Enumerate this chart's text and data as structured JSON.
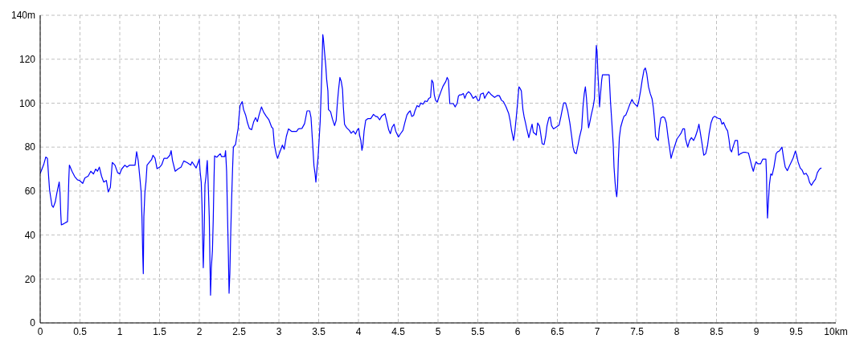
{
  "chart_data": {
    "type": "line",
    "color": "#0000ff",
    "line_style": "solid",
    "grid": true,
    "xlim": [
      0,
      10
    ],
    "xticks": [
      0,
      0.5,
      1,
      1.5,
      2,
      2.5,
      3,
      3.5,
      4,
      4.5,
      5,
      5.5,
      6,
      6.5,
      7,
      7.5,
      8,
      8.5,
      9,
      9.5,
      {
        "value": 10,
        "label": "10km"
      }
    ],
    "ylim": [
      0,
      140
    ],
    "yticks": [
      0,
      20,
      40,
      60,
      80,
      100,
      120,
      {
        "value": 140,
        "label": "140m"
      }
    ],
    "x": [
      0,
      0.024,
      0.047,
      0.071,
      0.091,
      0.108,
      0.118,
      0.131,
      0.148,
      0.165,
      0.189,
      0.212,
      0.239,
      0.249,
      0.259,
      0.266,
      0.3,
      0.343,
      0.35,
      0.36,
      0.367,
      0.4,
      0.434,
      0.468,
      0.495,
      0.535,
      0.562,
      0.603,
      0.636,
      0.67,
      0.697,
      0.72,
      0.744,
      0.771,
      0.798,
      0.832,
      0.855,
      0.882,
      0.906,
      0.94,
      0.973,
      1.0,
      1.024,
      1.064,
      1.091,
      1.125,
      1.192,
      1.212,
      1.232,
      1.256,
      1.269,
      1.279,
      1.289,
      1.296,
      1.303,
      1.316,
      1.33,
      1.343,
      1.377,
      1.4,
      1.418,
      1.444,
      1.468,
      1.502,
      1.529,
      1.556,
      1.596,
      1.63,
      1.646,
      1.663,
      1.697,
      1.73,
      1.771,
      1.805,
      1.848,
      1.892,
      1.909,
      1.96,
      2.0,
      2.01,
      2.024,
      2.034,
      2.044,
      2.05,
      2.061,
      2.071,
      2.084,
      2.094,
      2.1,
      2.111,
      2.125,
      2.135,
      2.141,
      2.151,
      2.165,
      2.175,
      2.185,
      2.192,
      2.219,
      2.263,
      2.279,
      2.32,
      2.33,
      2.343,
      2.354,
      2.364,
      2.374,
      2.384,
      2.394,
      2.407,
      2.418,
      2.428,
      2.455,
      2.471,
      2.488,
      2.498,
      2.512,
      2.539,
      2.556,
      2.582,
      2.606,
      2.629,
      2.657,
      2.684,
      2.707,
      2.73,
      2.751,
      2.781,
      2.808,
      2.842,
      2.875,
      2.909,
      2.926,
      2.943,
      2.966,
      2.983,
      3.01,
      3.044,
      3.067,
      3.094,
      3.121,
      3.162,
      3.222,
      3.246,
      3.29,
      3.323,
      3.354,
      3.387,
      3.404,
      3.424,
      3.441,
      3.455,
      3.465,
      3.482,
      3.492,
      3.505,
      3.519,
      3.532,
      3.542,
      3.552,
      3.559,
      3.575,
      3.589,
      3.6,
      3.616,
      3.623,
      3.65,
      3.673,
      3.7,
      3.72,
      3.734,
      3.75,
      3.767,
      3.784,
      3.8,
      3.81,
      3.825,
      3.852,
      3.886,
      3.909,
      3.936,
      3.963,
      3.987,
      4.003,
      4.017,
      4.03,
      4.044,
      4.057,
      4.071,
      4.091,
      4.121,
      4.155,
      4.189,
      4.216,
      4.239,
      4.266,
      4.29,
      4.333,
      4.357,
      4.38,
      4.401,
      4.424,
      4.448,
      4.468,
      4.502,
      4.525,
      4.559,
      4.582,
      4.609,
      4.636,
      4.65,
      4.67,
      4.693,
      4.71,
      4.737,
      4.761,
      4.784,
      4.811,
      4.838,
      4.862,
      4.885,
      4.906,
      4.922,
      4.939,
      4.953,
      4.97,
      4.99,
      5.013,
      5.04,
      5.064,
      5.098,
      5.115,
      5.131,
      5.148,
      5.192,
      5.216,
      5.242,
      5.256,
      5.273,
      5.293,
      5.318,
      5.337,
      5.357,
      5.384,
      5.408,
      5.441,
      5.475,
      5.502,
      5.519,
      5.535,
      5.569,
      5.586,
      5.609,
      5.636,
      5.67,
      5.711,
      5.748,
      5.771,
      5.798,
      5.822,
      5.855,
      5.889,
      5.906,
      5.923,
      5.939,
      5.949,
      5.963,
      5.983,
      6.0,
      6.017,
      6.03,
      6.047,
      6.067,
      6.084,
      6.1,
      6.114,
      6.141,
      6.161,
      6.182,
      6.198,
      6.219,
      6.235,
      6.252,
      6.276,
      6.293,
      6.309,
      6.333,
      6.353,
      6.37,
      6.394,
      6.41,
      6.427,
      6.451,
      6.485,
      6.521,
      6.545,
      6.555,
      6.579,
      6.603,
      6.63,
      6.657,
      6.68,
      6.697,
      6.714,
      6.737,
      6.758,
      6.781,
      6.805,
      6.822,
      6.838,
      6.852,
      6.865,
      6.882,
      6.892,
      6.906,
      6.926,
      6.949,
      6.966,
      6.976,
      6.99,
      7.0,
      7.01,
      7.02,
      7.03,
      7.04,
      7.057,
      7.067,
      7.151,
      7.168,
      7.185,
      7.202,
      7.212,
      7.225,
      7.236,
      7.246,
      7.256,
      7.266,
      7.279,
      7.296,
      7.32,
      7.337,
      7.36,
      7.387,
      7.411,
      7.438,
      7.455,
      7.478,
      7.505,
      7.522,
      7.546,
      7.566,
      7.589,
      7.606,
      7.623,
      7.646,
      7.667,
      7.69,
      7.707,
      7.724,
      7.734,
      7.751,
      7.768,
      7.781,
      7.801,
      7.825,
      7.848,
      7.869,
      7.892,
      7.916,
      7.929,
      7.949,
      7.976,
      8.003,
      8.027,
      8.054,
      8.077,
      8.098,
      8.111,
      8.138,
      8.162,
      8.185,
      8.212,
      8.236,
      8.263,
      8.279,
      8.296,
      8.32,
      8.34,
      8.364,
      8.387,
      8.407,
      8.431,
      8.455,
      8.475,
      8.515,
      8.549,
      8.569,
      8.589,
      8.616,
      8.64,
      8.656,
      8.673,
      8.69,
      8.707,
      8.734,
      8.764,
      8.777,
      8.801,
      8.835,
      8.869,
      8.902,
      8.926,
      8.946,
      8.963,
      8.98,
      8.997,
      9.02,
      9.054,
      9.081,
      9.121,
      9.128,
      9.135,
      9.141,
      9.151,
      9.165,
      9.182,
      9.199,
      9.222,
      9.249,
      9.266,
      9.289,
      9.323,
      9.343,
      9.364,
      9.39,
      9.417,
      9.441,
      9.464,
      9.491,
      9.508,
      9.525,
      9.552,
      9.575,
      9.599,
      9.626,
      9.65,
      9.67,
      9.693,
      9.717,
      9.744,
      9.768,
      9.795,
      9.818
    ],
    "values": [
      68,
      70.2,
      72.4,
      75.5,
      74.9,
      65.6,
      60.5,
      57.4,
      53.4,
      52.6,
      55,
      59.5,
      64.1,
      59.3,
      49.5,
      44.6,
      45.2,
      46.1,
      52.6,
      65.6,
      71.8,
      69,
      66.6,
      65.1,
      64.8,
      63.5,
      66,
      66.8,
      69,
      67.8,
      70,
      69,
      70.9,
      66.8,
      64.1,
      64.8,
      59.6,
      61.7,
      73,
      71.8,
      68.4,
      67.8,
      70,
      71.8,
      70.9,
      71.8,
      71.8,
      77.9,
      73.9,
      64.8,
      59.5,
      48.3,
      31.2,
      22.4,
      48.3,
      59.3,
      64.4,
      71.8,
      73.3,
      74.3,
      76.3,
      74.9,
      70.2,
      70.9,
      72.1,
      74.9,
      74.9,
      76.3,
      78.4,
      73.9,
      69,
      70,
      70.9,
      73.7,
      72.9,
      71.8,
      73.3,
      70.5,
      74.5,
      69,
      64.1,
      53.2,
      34.3,
      25.1,
      41,
      62.9,
      66.6,
      71.5,
      73.9,
      64.1,
      48.3,
      25.1,
      12.6,
      25.1,
      33,
      47.1,
      66,
      76,
      75.4,
      77,
      75.7,
      75.7,
      78.4,
      69,
      49.5,
      33,
      13.5,
      22.7,
      39.8,
      57.4,
      70.2,
      80,
      81.2,
      84.9,
      88.5,
      93.4,
      98.9,
      100.7,
      97.1,
      94.6,
      91,
      88.5,
      87.9,
      91.6,
      93.4,
      91.6,
      94.6,
      98.3,
      95.9,
      94,
      92.4,
      89.1,
      88.5,
      81.2,
      77,
      74.9,
      77.6,
      80.9,
      79,
      84.9,
      88.3,
      87.1,
      87.1,
      88.3,
      88.5,
      90.7,
      96.5,
      96.5,
      93.4,
      81.8,
      71.5,
      67.8,
      64.1,
      71.5,
      75.1,
      83,
      91.6,
      105.6,
      117.8,
      131.2,
      129.4,
      122.7,
      117.1,
      111,
      105.6,
      97.1,
      96.1,
      92.8,
      89.8,
      92.2,
      99.5,
      106.2,
      111.7,
      109.9,
      106.2,
      98.3,
      90.4,
      88.8,
      87.6,
      86.3,
      87.3,
      85.9,
      87.9,
      88.5,
      84.9,
      83,
      78.5,
      81.2,
      87.3,
      92.2,
      93,
      93,
      94.9,
      94,
      93.8,
      92.4,
      94,
      95.2,
      91.6,
      87.9,
      86.1,
      89.1,
      90.4,
      87.3,
      84.6,
      85.9,
      87.6,
      91,
      94.6,
      96.1,
      96.5,
      94,
      94.4,
      96.5,
      98.9,
      98.3,
      100.1,
      99.5,
      101,
      100.7,
      102.2,
      102.6,
      110.5,
      109.3,
      103.8,
      101.3,
      100.5,
      102.9,
      105.6,
      107.8,
      109.9,
      111.7,
      110.5,
      99.8,
      99.8,
      98.3,
      100.1,
      103.2,
      103.8,
      103.8,
      104.4,
      102.2,
      104.1,
      105.2,
      104.4,
      102.2,
      103.2,
      101.2,
      101.3,
      104.1,
      104.6,
      102.2,
      103.8,
      105.2,
      103.8,
      102.6,
      103.5,
      103.4,
      101.3,
      100.7,
      98.3,
      95.2,
      92.2,
      87.9,
      84.9,
      83,
      86.1,
      93.4,
      100.1,
      107.4,
      106.8,
      105.6,
      97.1,
      93.4,
      91,
      88.5,
      84.3,
      87.3,
      90.4,
      86.7,
      86.1,
      85.5,
      91,
      89.5,
      85.5,
      81.5,
      81.2,
      84.9,
      89.8,
      93.4,
      93.7,
      89.8,
      88.3,
      89.1,
      90,
      94,
      95.9,
      100.1,
      100.1,
      96.5,
      91,
      84.9,
      80,
      77.6,
      77,
      80.6,
      84.9,
      88.5,
      98.3,
      104.4,
      107.4,
      102.6,
      93.4,
      88.8,
      91,
      94.6,
      98.3,
      102,
      112.9,
      126.3,
      122.7,
      112.9,
      106.8,
      98.3,
      103.2,
      110.5,
      112.9,
      112.9,
      100.5,
      91,
      81.2,
      70.9,
      64.1,
      59.9,
      57.4,
      61.7,
      73.9,
      84.3,
      89.1,
      92.2,
      94,
      94.6,
      97.1,
      99.5,
      101.7,
      100.4,
      99.5,
      98.5,
      100.7,
      105.6,
      110.5,
      115.1,
      116,
      113.5,
      107.4,
      104.4,
      102,
      97.7,
      91,
      84.9,
      83.7,
      83,
      88.5,
      93.2,
      93.8,
      93.4,
      91,
      84.3,
      78.2,
      74.9,
      77.6,
      80.6,
      83.7,
      84.9,
      86.3,
      88.3,
      88.3,
      83.7,
      80,
      83,
      84.3,
      83,
      84.9,
      87.9,
      90.4,
      86.7,
      81.2,
      76.3,
      77,
      80.6,
      86.1,
      91,
      93.4,
      94,
      93.2,
      92.8,
      90.4,
      91.2,
      88.8,
      87.3,
      83.7,
      78.8,
      77.8,
      80,
      83,
      83,
      76.3,
      77,
      77.6,
      77.6,
      77.3,
      73.9,
      70.9,
      69,
      71.5,
      73.3,
      72.4,
      72.4,
      74.5,
      74.5,
      67.8,
      54.4,
      47.7,
      54.4,
      62.9,
      67.8,
      67.2,
      70.9,
      77,
      77.8,
      78.2,
      80,
      75.1,
      70.9,
      69.3,
      71.5,
      73.3,
      75.1,
      78.2,
      76.3,
      73.3,
      70.5,
      69.6,
      67.6,
      68.1,
      66.6,
      63.9,
      62.6,
      64.1,
      65.4,
      68.4,
      70,
      70.5
    ]
  }
}
